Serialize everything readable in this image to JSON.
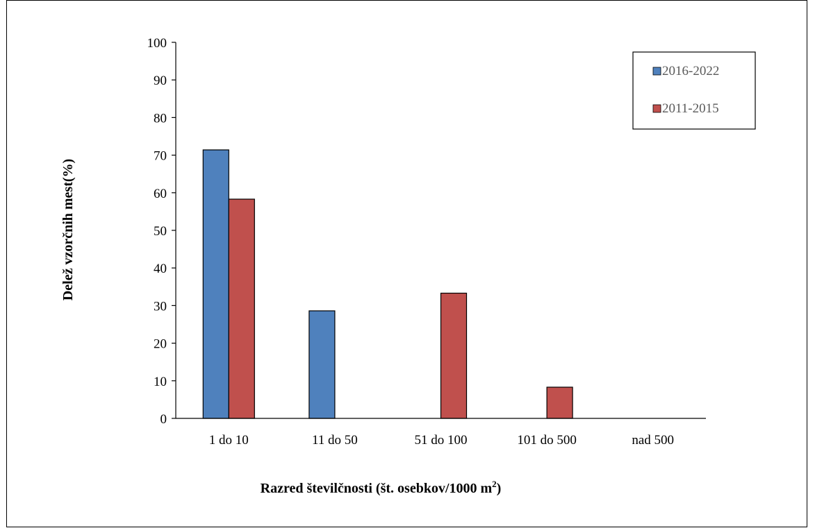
{
  "chart_data": {
    "type": "bar",
    "categories": [
      "1 do 10",
      "11 do 50",
      "51 do 100",
      "101 do 500",
      "nad 500"
    ],
    "series": [
      {
        "name": "2016-2022",
        "values": [
          71.4,
          28.6,
          0,
          0,
          0
        ],
        "color": "#4f81bd"
      },
      {
        "name": "2011-2015",
        "values": [
          58.3,
          0,
          33.3,
          8.3,
          0
        ],
        "color": "#c0504d"
      }
    ],
    "yticks": [
      0,
      10,
      20,
      30,
      40,
      50,
      60,
      70,
      80,
      90,
      100
    ],
    "ylim": [
      0,
      100
    ],
    "ylabel": "Delež vzorčnih mest(%)",
    "xlabel_main": "Razred številčnosti (št. osebkov/1000 m",
    "xlabel_sup": "2",
    "xlabel_end": ")",
    "grid": false,
    "legend_position": "top-right"
  }
}
